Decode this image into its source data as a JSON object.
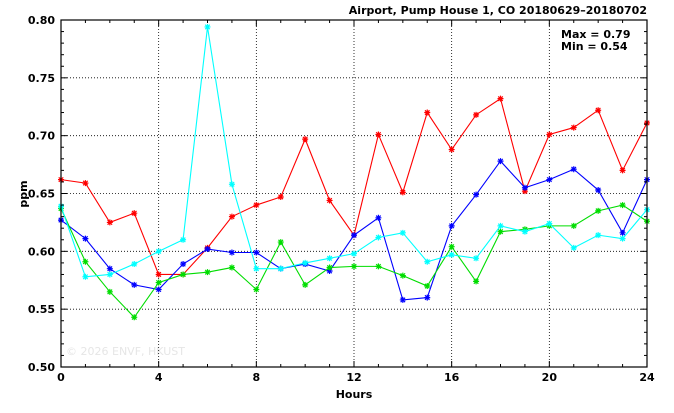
{
  "chart_data": {
    "type": "line",
    "title": "Airport, Pump House 1, CO 20180629–20180702",
    "xlabel": "Hours",
    "ylabel": "ppm",
    "xlim": [
      0,
      24
    ],
    "ylim": [
      0.5,
      0.8
    ],
    "xticks": [
      0,
      4,
      8,
      12,
      16,
      20,
      24
    ],
    "yticks": [
      0.5,
      0.55,
      0.6,
      0.65,
      0.7,
      0.75,
      0.8
    ],
    "xtick_labels": [
      "0",
      "4",
      "8",
      "12",
      "16",
      "20",
      "24"
    ],
    "ytick_labels": [
      "0.50",
      "0.55",
      "0.60",
      "0.65",
      "0.70",
      "0.75",
      "0.80"
    ],
    "grid": true,
    "stats": {
      "max_label": "Max = 0.79",
      "min_label": "Min = 0.54"
    },
    "watermark": "© 2026  ENVF, HKUST",
    "x": [
      0,
      1,
      2,
      3,
      4,
      5,
      6,
      7,
      8,
      9,
      10,
      11,
      12,
      13,
      14,
      15,
      16,
      17,
      18,
      19,
      20,
      21,
      22,
      23,
      24
    ],
    "series": [
      {
        "color": "#ff0000",
        "values": [
          0.662,
          0.659,
          0.625,
          0.633,
          0.58,
          0.58,
          0.603,
          0.63,
          0.64,
          0.647,
          0.697,
          0.644,
          0.614,
          0.701,
          0.651,
          0.72,
          0.688,
          0.718,
          0.732,
          0.652,
          0.701,
          0.707,
          0.722,
          0.67,
          0.711
        ]
      },
      {
        "color": "#0000ff",
        "values": [
          0.627,
          0.611,
          0.585,
          0.571,
          0.567,
          0.589,
          0.602,
          0.599,
          0.599,
          0.585,
          0.589,
          0.583,
          0.614,
          0.629,
          0.558,
          0.56,
          0.622,
          0.649,
          0.678,
          0.655,
          0.662,
          0.671,
          0.653,
          0.616,
          0.662
        ]
      },
      {
        "color": "#00dd00",
        "values": [
          0.637,
          0.591,
          0.565,
          0.543,
          0.573,
          0.58,
          0.582,
          0.586,
          0.567,
          0.608,
          0.571,
          0.586,
          0.587,
          0.587,
          0.579,
          0.57,
          0.604,
          0.574,
          0.617,
          0.619,
          0.622,
          0.622,
          0.635,
          0.64,
          0.626
        ]
      },
      {
        "color": "#00ffff",
        "values": [
          0.639,
          0.578,
          0.58,
          0.589,
          0.6,
          0.61,
          0.794,
          0.658,
          0.585,
          0.585,
          0.59,
          0.594,
          0.598,
          0.612,
          0.616,
          0.591,
          0.597,
          0.594,
          0.622,
          0.617,
          0.624,
          0.603,
          0.614,
          0.611,
          0.636
        ]
      }
    ]
  }
}
